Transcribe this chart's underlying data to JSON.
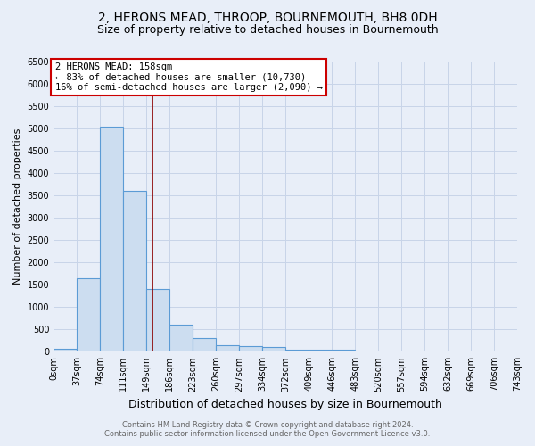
{
  "title": "2, HERONS MEAD, THROOP, BOURNEMOUTH, BH8 0DH",
  "subtitle": "Size of property relative to detached houses in Bournemouth",
  "xlabel": "Distribution of detached houses by size in Bournemouth",
  "ylabel": "Number of detached properties",
  "bin_edges": [
    0,
    37,
    74,
    111,
    149,
    186,
    223,
    260,
    297,
    334,
    372,
    409,
    446,
    483,
    520,
    557,
    594,
    632,
    669,
    706,
    743
  ],
  "bar_heights": [
    75,
    1650,
    5050,
    3600,
    1400,
    600,
    300,
    150,
    130,
    100,
    55,
    45,
    55,
    0,
    0,
    0,
    0,
    0,
    0,
    0
  ],
  "bar_color": "#ccddf0",
  "bar_edgecolor": "#5b9bd5",
  "bar_linewidth": 0.8,
  "ylim": [
    0,
    6500
  ],
  "yticks": [
    0,
    500,
    1000,
    1500,
    2000,
    2500,
    3000,
    3500,
    4000,
    4500,
    5000,
    5500,
    6000,
    6500
  ],
  "xtick_labels": [
    "0sqm",
    "37sqm",
    "74sqm",
    "111sqm",
    "149sqm",
    "186sqm",
    "223sqm",
    "260sqm",
    "297sqm",
    "334sqm",
    "372sqm",
    "409sqm",
    "446sqm",
    "483sqm",
    "520sqm",
    "557sqm",
    "594sqm",
    "632sqm",
    "669sqm",
    "706sqm",
    "743sqm"
  ],
  "property_size": 158,
  "vline_color": "#8b0000",
  "vline_linewidth": 1.2,
  "annotation_text": "2 HERONS MEAD: 158sqm\n← 83% of detached houses are smaller (10,730)\n16% of semi-detached houses are larger (2,090) →",
  "annotation_box_color": "#ffffff",
  "annotation_box_edgecolor": "#cc0000",
  "grid_color": "#c8d4e8",
  "background_color": "#e8eef8",
  "plot_bg_color": "#e8eef8",
  "footer_line1": "Contains HM Land Registry data © Crown copyright and database right 2024.",
  "footer_line2": "Contains public sector information licensed under the Open Government Licence v3.0.",
  "title_fontsize": 10,
  "subtitle_fontsize": 9,
  "xlabel_fontsize": 9,
  "ylabel_fontsize": 8,
  "tick_fontsize": 7,
  "annotation_fontsize": 7.5,
  "footer_fontsize": 6
}
